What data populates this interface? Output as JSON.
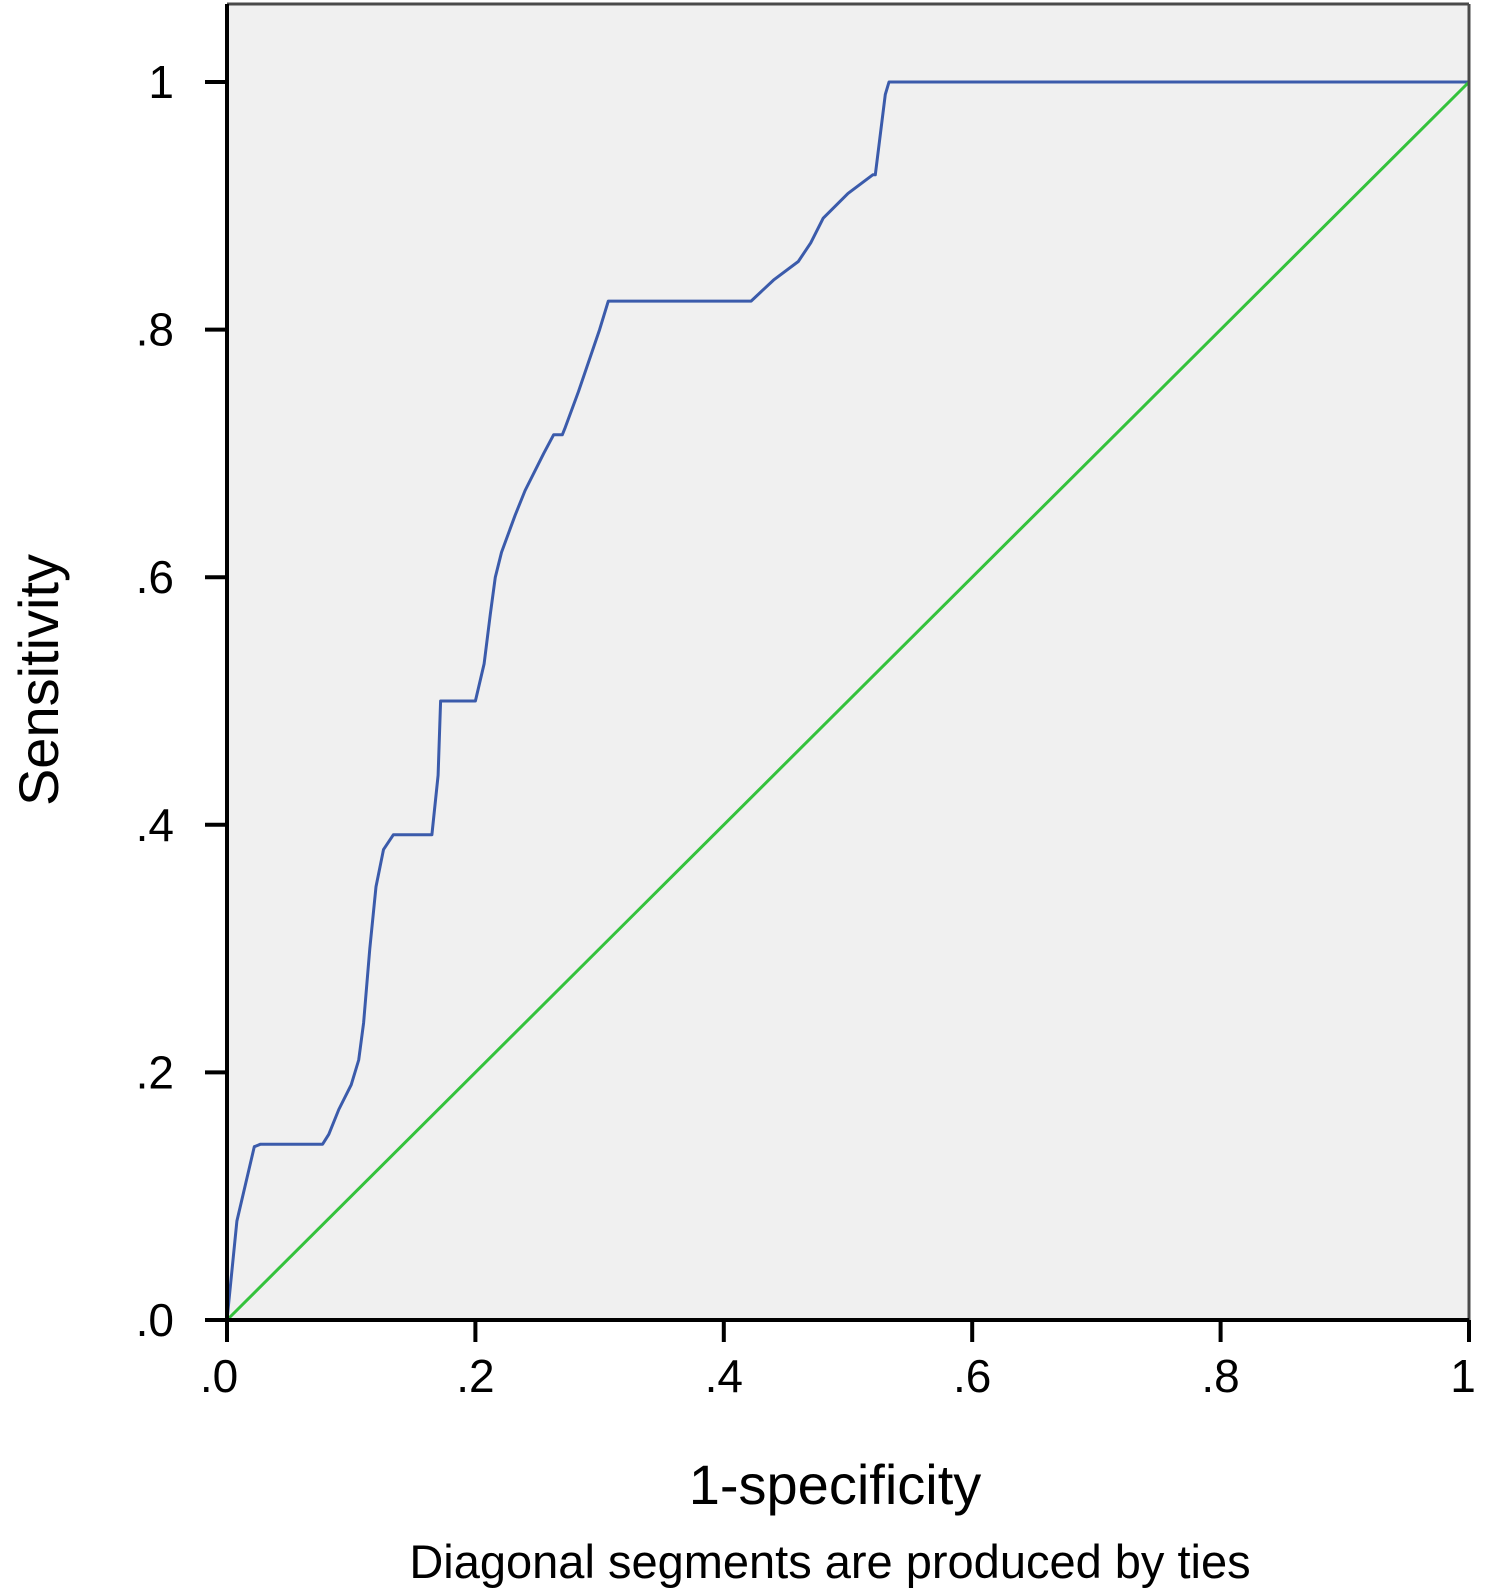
{
  "chart_data": {
    "type": "line",
    "title": "",
    "xlabel": "1-specificity",
    "ylabel": "Sensitivity",
    "footnote": "Diagonal segments are produced by ties",
    "xlim": [
      0,
      1
    ],
    "ylim": [
      0,
      1.06
    ],
    "x_ticks": [
      0,
      0.2,
      0.4,
      0.6,
      0.8,
      1
    ],
    "x_tick_labels": [
      ".0",
      ".2",
      ".4",
      ".6",
      ".8",
      "1"
    ],
    "y_ticks": [
      0,
      0.2,
      0.4,
      0.6,
      0.8,
      1
    ],
    "y_tick_labels": [
      ".0",
      ".2",
      ".4",
      ".6",
      ".8",
      "1"
    ],
    "grid": false,
    "legend": "none",
    "colors": {
      "plot_background": "#f0f0f0",
      "roc_curve": "#3b5bab",
      "reference_line": "#34c23c",
      "axis": "#000000"
    },
    "series": [
      {
        "x": [
          0,
          0.003,
          0.008,
          0.015,
          0.022,
          0.027,
          0.03,
          0.05,
          0.077,
          0.082,
          0.09,
          0.1,
          0.106,
          0.11,
          0.115,
          0.12,
          0.126,
          0.134,
          0.165,
          0.17,
          0.172,
          0.178,
          0.19,
          0.2,
          0.207,
          0.212,
          0.216,
          0.221,
          0.232,
          0.24,
          0.255,
          0.263,
          0.27,
          0.272,
          0.283,
          0.3,
          0.307,
          0.313,
          0.4,
          0.422,
          0.44,
          0.46,
          0.47,
          0.48,
          0.5,
          0.52,
          0.522,
          0.53,
          0.533,
          1
        ],
        "y": [
          0,
          0.03,
          0.08,
          0.11,
          0.14,
          0.142,
          0.142,
          0.142,
          0.142,
          0.15,
          0.17,
          0.19,
          0.21,
          0.24,
          0.3,
          0.35,
          0.38,
          0.392,
          0.392,
          0.44,
          0.5,
          0.5,
          0.5,
          0.5,
          0.53,
          0.57,
          0.6,
          0.62,
          0.65,
          0.67,
          0.7,
          0.715,
          0.715,
          0.72,
          0.75,
          0.8,
          0.823,
          0.823,
          0.823,
          0.823,
          0.84,
          0.855,
          0.87,
          0.89,
          0.91,
          0.925,
          0.925,
          0.99,
          1,
          1
        ]
      },
      {
        "x": [
          0,
          1
        ],
        "y": [
          0,
          1
        ]
      }
    ]
  }
}
